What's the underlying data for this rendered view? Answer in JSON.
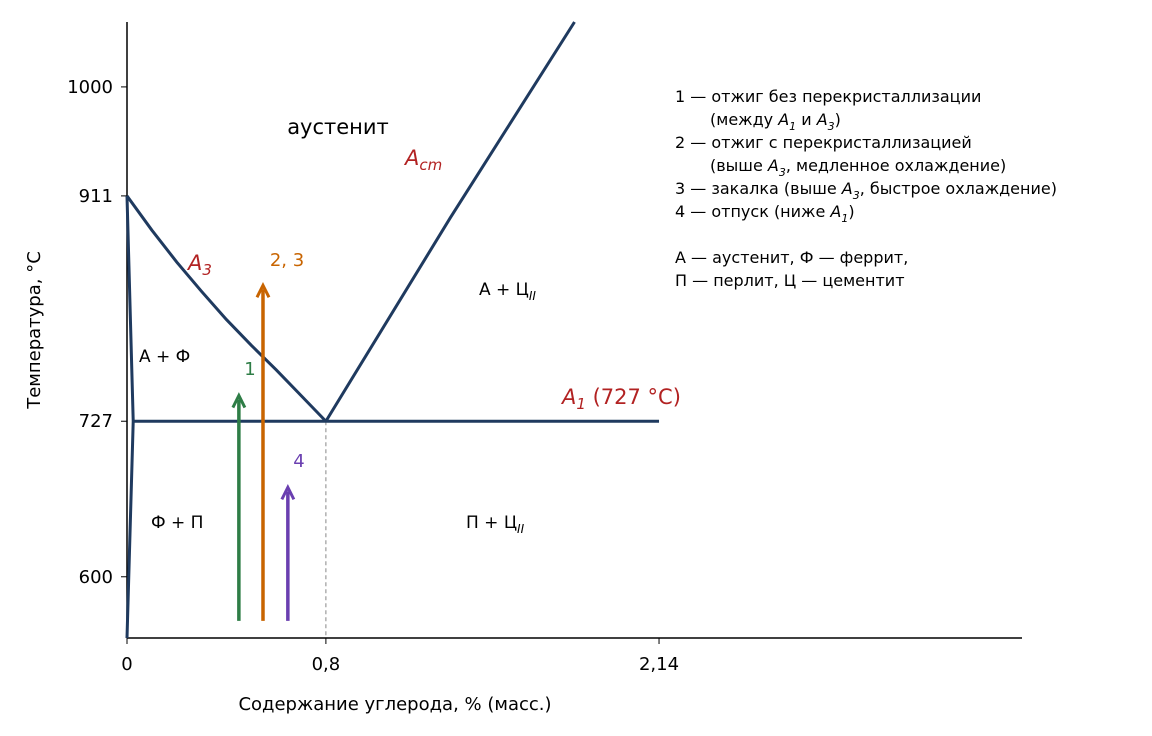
{
  "chart_data": {
    "type": "phase_diagram",
    "xlabel": "Содержание углерода, % (масс.)",
    "ylabel": "Температура, °C",
    "xlim": [
      0,
      3.6
    ],
    "ylim": [
      550,
      1053
    ],
    "xticks": [
      0,
      {
        "value": 0.8,
        "label": "0,8"
      },
      {
        "value": 2.14,
        "label": "2,14"
      }
    ],
    "yticks": [
      600,
      727,
      911,
      1000
    ],
    "line_color": "#1f3a5f",
    "label_color": "#b22222",
    "lines": [
      {
        "label": [
          {
            "base": "A",
            "sub": "3"
          }
        ],
        "x": [
          0,
          0.1,
          0.2,
          0.3,
          0.4,
          0.5,
          0.6,
          0.7,
          0.8
        ],
        "y": [
          911,
          883,
          857,
          833,
          810,
          789,
          769,
          748,
          727
        ]
      },
      {
        "label": [
          {
            "base": "A",
            "sub": "cm"
          }
        ],
        "x": [
          0.8,
          1.3,
          1.8
        ],
        "y": [
          727,
          893,
          1053
        ]
      },
      {
        "label": [
          {
            "base": "A",
            "sub": "1"
          },
          " (727 °C)"
        ],
        "x": [
          0.025,
          2.14
        ],
        "y": [
          727,
          727
        ]
      },
      {
        "x": [
          0,
          0.025,
          0
        ],
        "y": [
          911,
          727,
          550
        ]
      }
    ],
    "dashed": {
      "color": "#888888",
      "x": [
        0.8,
        0.8
      ],
      "y": [
        727,
        550
      ]
    },
    "arrows": [
      {
        "label": "1",
        "color": "#2e7d46",
        "x": 0.45,
        "y": [
          564,
          748
        ]
      },
      {
        "label": "2, 3",
        "color": "#c86400",
        "x": 0.547,
        "y": [
          564,
          838
        ]
      },
      {
        "label": "4",
        "color": "#6a3fb0",
        "x": 0.647,
        "y": [
          564,
          673
        ]
      }
    ],
    "regions": [
      [
        "аустенит"
      ],
      [
        "А + Ф"
      ],
      [
        "Ф + П"
      ],
      [
        "П + Ц",
        {
          "sub": "II"
        }
      ],
      [
        "А + Ц",
        {
          "sub": "II"
        }
      ]
    ],
    "legend": [
      [
        "1 — отжиг без перекристаллизации"
      ],
      [
        "(между ",
        {
          "base": "A",
          "sub": "1"
        },
        " и ",
        {
          "base": "A",
          "sub": "3"
        },
        ")"
      ],
      [
        "2 — отжиг с перекристаллизацией"
      ],
      [
        "(выше ",
        {
          "base": "A",
          "sub": "3"
        },
        ", медленное охлаждение)"
      ],
      [
        "3 — закалка (выше ",
        {
          "base": "A",
          "sub": "3"
        },
        ", быстрое охлаждение)"
      ],
      [
        "4 — отпуск (ниже ",
        {
          "base": "A",
          "sub": "1"
        },
        ")"
      ],
      [
        "А — аустенит, Ф — феррит,"
      ],
      [
        "П — перлит, Ц — цементит"
      ]
    ]
  }
}
